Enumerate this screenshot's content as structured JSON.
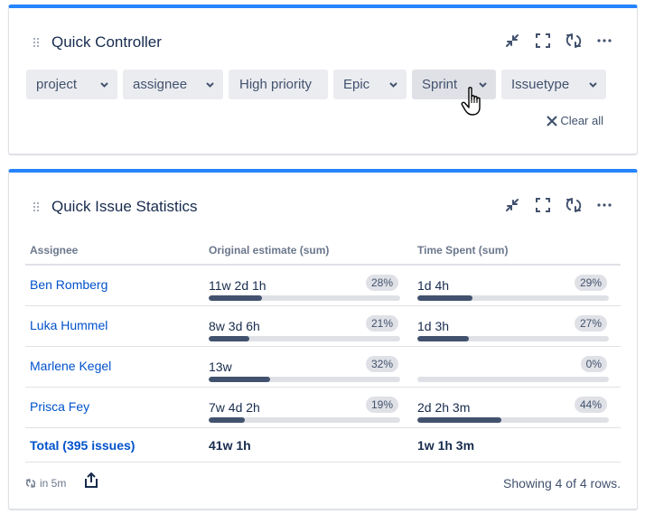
{
  "colors": {
    "accent_border": "#2684ff",
    "link": "#0052cc",
    "bar_fill": "#42526e",
    "bar_track": "#dfe1e6",
    "filter_bg": "#ebecf0"
  },
  "quick_controller": {
    "title": "Quick Controller",
    "header_icons": [
      "minimize-icon",
      "fullscreen-icon",
      "refresh-icon",
      "more-icon"
    ],
    "filters": [
      {
        "label": "project",
        "has_dropdown": true
      },
      {
        "label": "assignee",
        "has_dropdown": true
      },
      {
        "label": "High priority",
        "has_dropdown": false
      },
      {
        "label": "Epic",
        "has_dropdown": true
      },
      {
        "label": "Sprint",
        "has_dropdown": true,
        "hovered": true
      },
      {
        "label": "Issuetype",
        "has_dropdown": true
      }
    ],
    "clear_all": "Clear all"
  },
  "quick_issue_statistics": {
    "title": "Quick Issue Statistics",
    "header_icons": [
      "minimize-icon",
      "fullscreen-icon",
      "refresh-icon",
      "more-icon"
    ],
    "columns": [
      "Assignee",
      "Original estimate (sum)",
      "Time Spent (sum)"
    ],
    "rows": [
      {
        "assignee": "Ben Romberg",
        "original_estimate": "11w 2d 1h",
        "oe_pct": "28%",
        "oe_pct_value": 28,
        "time_spent": "1d 4h",
        "ts_pct": "29%",
        "ts_pct_value": 29
      },
      {
        "assignee": "Luka Hummel",
        "original_estimate": "8w 3d 6h",
        "oe_pct": "21%",
        "oe_pct_value": 21,
        "time_spent": "1d 3h",
        "ts_pct": "27%",
        "ts_pct_value": 27
      },
      {
        "assignee": "Marlene Kegel",
        "original_estimate": "13w",
        "oe_pct": "32%",
        "oe_pct_value": 32,
        "time_spent": "",
        "ts_pct": "0%",
        "ts_pct_value": 0
      },
      {
        "assignee": "Prisca Fey",
        "original_estimate": "7w 4d 2h",
        "oe_pct": "19%",
        "oe_pct_value": 19,
        "time_spent": "2d 2h 3m",
        "ts_pct": "44%",
        "ts_pct_value": 44
      }
    ],
    "total": {
      "label": "Total (395 issues)",
      "original_estimate": "41w 1h",
      "time_spent": "1w 1h 3m"
    },
    "footer": {
      "refresh_text": "in 5m",
      "showing_text": "Showing 4 of 4 rows."
    }
  }
}
